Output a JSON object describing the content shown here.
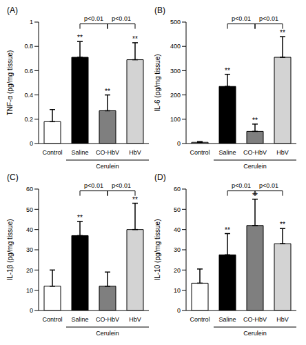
{
  "chart_data": [
    {
      "type": "bar",
      "title": "(A)",
      "y_label": "TNF-α (pg/mg tissue)",
      "categories": [
        "Control",
        "Saline",
        "CO-HbV",
        "HbV"
      ],
      "values": [
        0.18,
        0.71,
        0.27,
        0.69
      ],
      "errors": [
        0.1,
        0.13,
        0.13,
        0.14
      ],
      "colors": [
        "#ffffff",
        "#000000",
        "#7f7f7f",
        "#d3d3d3"
      ],
      "ylim": [
        0,
        1
      ],
      "yticks": [
        0,
        0.2,
        0.4,
        0.6,
        0.8,
        1
      ],
      "group": {
        "label": "Cerulein",
        "categories": [
          "Saline",
          "CO-HbV",
          "HbV"
        ]
      },
      "annotations": [
        {
          "category": "Saline",
          "text": "**"
        },
        {
          "category": "CO-HbV",
          "text": "**"
        },
        {
          "category": "HbV",
          "text": "**"
        }
      ],
      "brackets": [
        {
          "from": "Saline",
          "to": "CO-HbV",
          "label": "p<0.01"
        },
        {
          "from": "CO-HbV",
          "to": "HbV",
          "label": "p<0.01"
        }
      ]
    },
    {
      "type": "bar",
      "title": "(B)",
      "y_label": "IL-6 (pg/mg tissue)",
      "categories": [
        "Control",
        "Saline",
        "CO-HbV",
        "HbV"
      ],
      "values": [
        5,
        235,
        50,
        355
      ],
      "errors": [
        3,
        50,
        30,
        85
      ],
      "colors": [
        "#ffffff",
        "#000000",
        "#7f7f7f",
        "#d3d3d3"
      ],
      "ylim": [
        0,
        500
      ],
      "yticks": [
        0,
        100,
        200,
        300,
        400,
        500
      ],
      "group": {
        "label": "Cerulein",
        "categories": [
          "Saline",
          "CO-HbV",
          "HbV"
        ]
      },
      "annotations": [
        {
          "category": "Saline",
          "text": "**"
        },
        {
          "category": "CO-HbV",
          "text": "**"
        },
        {
          "category": "HbV",
          "text": "**"
        }
      ],
      "brackets": [
        {
          "from": "Saline",
          "to": "CO-HbV",
          "label": "p<0.01"
        },
        {
          "from": "CO-HbV",
          "to": "HbV",
          "label": "p<0.01"
        }
      ]
    },
    {
      "type": "bar",
      "title": "(C)",
      "y_label": "IL-1β (pg/mg tissue)",
      "categories": [
        "Control",
        "Saline",
        "CO-HbV",
        "HbV"
      ],
      "values": [
        12,
        37,
        12,
        40
      ],
      "errors": [
        8,
        7,
        7,
        13
      ],
      "colors": [
        "#ffffff",
        "#000000",
        "#7f7f7f",
        "#d3d3d3"
      ],
      "ylim": [
        0,
        60
      ],
      "yticks": [
        0,
        10,
        20,
        30,
        40,
        50,
        60
      ],
      "group": {
        "label": "Cerulein",
        "categories": [
          "Saline",
          "CO-HbV",
          "HbV"
        ]
      },
      "annotations": [
        {
          "category": "Saline",
          "text": "**"
        },
        {
          "category": "HbV",
          "text": "**"
        }
      ],
      "brackets": [
        {
          "from": "Saline",
          "to": "CO-HbV",
          "label": "p<0.01"
        },
        {
          "from": "CO-HbV",
          "to": "HbV",
          "label": "p<0.01"
        }
      ]
    },
    {
      "type": "bar",
      "title": "(D)",
      "y_label": "IL-10 (pg/mg tissue)",
      "categories": [
        "Control",
        "Saline",
        "CO-HbV",
        "HbV"
      ],
      "values": [
        13.5,
        27.5,
        42,
        33
      ],
      "errors": [
        7,
        10.5,
        13,
        7.5
      ],
      "colors": [
        "#ffffff",
        "#000000",
        "#7f7f7f",
        "#d3d3d3"
      ],
      "ylim": [
        0,
        60
      ],
      "yticks": [
        0,
        10,
        20,
        30,
        40,
        50,
        60
      ],
      "group": {
        "label": "Cerulein",
        "categories": [
          "Saline",
          "CO-HbV",
          "HbV"
        ]
      },
      "annotations": [
        {
          "category": "Saline",
          "text": "**"
        },
        {
          "category": "CO-HbV",
          "text": "**"
        },
        {
          "category": "HbV",
          "text": "**"
        }
      ],
      "brackets": [
        {
          "from": "Saline",
          "to": "CO-HbV",
          "label": "p<0.01"
        },
        {
          "from": "CO-HbV",
          "to": "HbV",
          "label": "p<0.01"
        }
      ]
    }
  ]
}
